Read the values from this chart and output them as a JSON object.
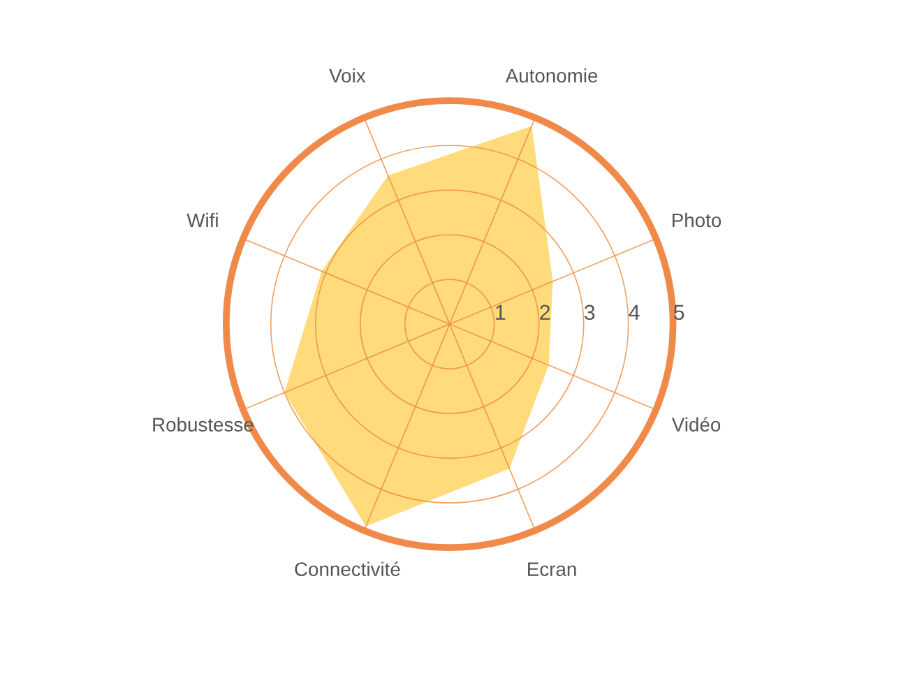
{
  "chart_data": {
    "type": "radar",
    "categories": [
      "Autonomie",
      "Photo",
      "Vidéo",
      "Ecran",
      "Connectivité",
      "Robustesse",
      "Wifi",
      "Voix"
    ],
    "series": [
      {
        "color": "#ffd76e",
        "values": [
          4.8,
          2.5,
          2.4,
          3.5,
          4.9,
          4.0,
          3.1,
          3.6
        ]
      }
    ],
    "ylim": [
      0,
      5
    ],
    "yticks": [
      1,
      2,
      3,
      4,
      5
    ],
    "grid": true
  }
}
